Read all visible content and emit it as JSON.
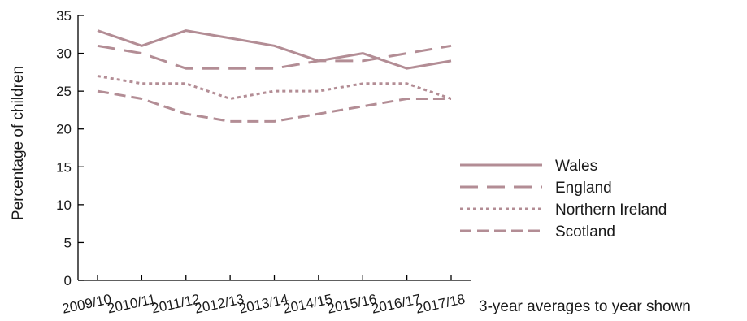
{
  "chart_data": {
    "type": "line",
    "title": "",
    "xlabel": "3-year averages to year shown",
    "ylabel": "Percentage of children",
    "ylim": [
      0,
      35
    ],
    "yticks": [
      "0",
      "5",
      "10",
      "15",
      "20",
      "25",
      "30",
      "35"
    ],
    "categories": [
      "2009/10",
      "2010/11",
      "2011/12",
      "2012/13",
      "2013/14",
      "2014/15",
      "2015/16",
      "2016/17",
      "2017/18"
    ],
    "grid": false,
    "legend_position": "right",
    "series": [
      {
        "name": "Wales",
        "color": "#b38d95",
        "dash": "solid",
        "values": [
          33,
          31,
          33,
          32,
          31,
          29,
          30,
          28,
          29
        ]
      },
      {
        "name": "England",
        "color": "#b38d95",
        "dash": "long-dash",
        "values": [
          31,
          30,
          28,
          28,
          28,
          29,
          29,
          30,
          31
        ]
      },
      {
        "name": "Northern Ireland",
        "color": "#b38d95",
        "dash": "dotted",
        "values": [
          27,
          26,
          26,
          24,
          25,
          25,
          26,
          26,
          24
        ]
      },
      {
        "name": "Scotland",
        "color": "#b38d95",
        "dash": "dashed",
        "values": [
          25,
          24,
          22,
          21,
          21,
          22,
          23,
          24,
          24
        ]
      }
    ]
  }
}
